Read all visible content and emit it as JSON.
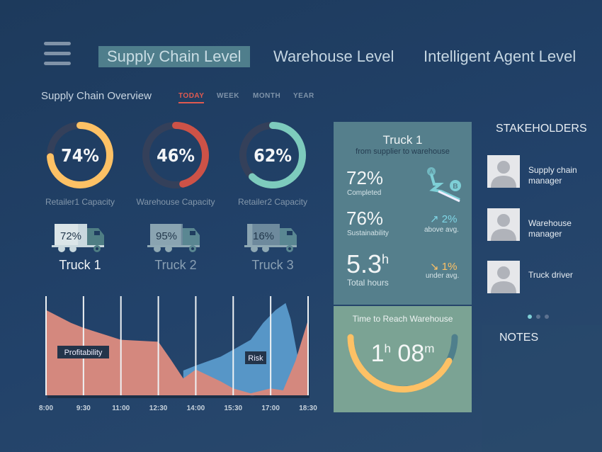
{
  "nav": {
    "tabs": [
      {
        "label": "Supply Chain Level",
        "active": true
      },
      {
        "label": "Warehouse Level"
      },
      {
        "label": "Intelligent Agent Level"
      }
    ]
  },
  "overview": {
    "title": "Supply Chain Overview",
    "periods": [
      "TODAY",
      "WEEK",
      "MONTH",
      "YEAR"
    ],
    "active_period": "TODAY"
  },
  "gauges": [
    {
      "value": "74%",
      "percent": 74,
      "label": "Retailer1 Capacity",
      "color": "#fdc165"
    },
    {
      "value": "46%",
      "percent": 46,
      "label": "Warehouse Capacity",
      "color": "#cd5247"
    },
    {
      "value": "62%",
      "percent": 62,
      "label": "Retailer2 Capacity",
      "color": "#7dcbbd"
    }
  ],
  "trucks": [
    {
      "name": "Truck 1",
      "load": "72%",
      "percent": 72,
      "active": true
    },
    {
      "name": "Truck 2",
      "load": "95%",
      "percent": 95
    },
    {
      "name": "Truck 3",
      "load": "16%",
      "percent": 16
    }
  ],
  "chart_data": {
    "type": "area",
    "x_ticks": [
      "8:00",
      "9:30",
      "11:00",
      "12:30",
      "14:00",
      "15:30",
      "17:00",
      "18:30"
    ],
    "grid": true,
    "series": [
      {
        "name": "Profitability",
        "color": "#d4887e",
        "x": [
          8,
          9,
          9.5,
          10.5,
          11,
          12.5,
          13,
          13.5,
          14,
          15,
          15.5,
          16.2,
          17,
          17.5,
          18,
          18.5
        ],
        "y": [
          86,
          73,
          68,
          60,
          56,
          54,
          36,
          17,
          26,
          14,
          7,
          2,
          7,
          5,
          35,
          76
        ]
      },
      {
        "name": "Risk",
        "color": "#5796c7",
        "x": [
          13.5,
          14,
          15,
          15.5,
          16.2,
          16.7,
          17.2,
          17.6,
          17.8,
          18.1,
          18.3
        ],
        "y": [
          25,
          30,
          39,
          46,
          56,
          73,
          86,
          93,
          77,
          37,
          0
        ]
      }
    ]
  },
  "truck_card": {
    "title": "Truck 1",
    "subtitle": "from supplier to warehouse",
    "completed": "72%",
    "completed_label": "Completed",
    "sustainability": "76%",
    "sustainability_label": "Sustainability",
    "sust_delta": "↗ 2%",
    "sust_delta_label": "above avg.",
    "hours": "5.3",
    "hours_unit": "h",
    "hours_label": "Total hours",
    "hours_delta": "↘ 1%",
    "hours_delta_label": "under avg.",
    "route_from": "A",
    "route_to": "B"
  },
  "eta": {
    "title": "Time to Reach Warehouse",
    "hours": "1",
    "h_unit": "h",
    "minutes": "08",
    "m_unit": "m",
    "progress": 0.85
  },
  "stakeholders": {
    "title": "STAKEHOLDERS",
    "people": [
      "Supply chain manager",
      "Warehouse manager",
      "Truck driver"
    ],
    "page": 1,
    "pages": 3
  },
  "notes": {
    "title": "NOTES"
  },
  "colors": {
    "accent_red": "#e05a50",
    "teal": "#7ecfd6",
    "yellow": "#fdc165"
  }
}
